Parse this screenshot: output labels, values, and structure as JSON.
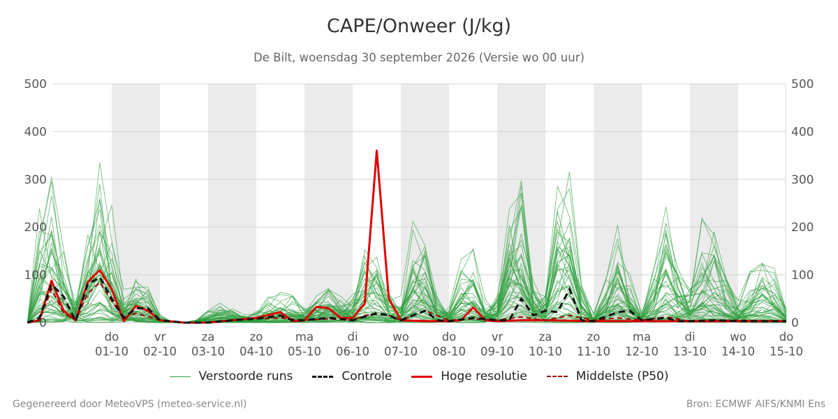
{
  "header": {
    "title": "CAPE/Onweer (J/kg)",
    "subtitle": "De Bilt, woensdag 30 september 2026 (Versie wo 00 uur)"
  },
  "footer": {
    "left": "Gegenereerd door MeteoVPS (meteo-service.nl)",
    "right": "Bron: ECMWF AIFS/KNMI Ens"
  },
  "legend": {
    "perturbed": "Verstoorde runs",
    "control": "Controle",
    "highres": "Hoge resolutie",
    "median": "Middelste (P50)"
  },
  "chart_data": {
    "type": "line",
    "title": "CAPE/Onweer (J/kg)",
    "subtitle": "De Bilt, woensdag 30 september 2026 (Versie wo 00 uur)",
    "ylim": [
      0,
      500
    ],
    "yticks": [
      0,
      100,
      200,
      300,
      400,
      500
    ],
    "x_unit": "days since 30-09 00:00",
    "xlim": [
      0,
      15
    ],
    "day_labels": [
      {
        "day": "do",
        "date": "01-10"
      },
      {
        "day": "vr",
        "date": "02-10"
      },
      {
        "day": "za",
        "date": "03-10"
      },
      {
        "day": "zo",
        "date": "04-10"
      },
      {
        "day": "ma",
        "date": "05-10"
      },
      {
        "day": "di",
        "date": "06-10"
      },
      {
        "day": "wo",
        "date": "07-10"
      },
      {
        "day": "do",
        "date": "08-10"
      },
      {
        "day": "vr",
        "date": "09-10"
      },
      {
        "day": "za",
        "date": "10-10"
      },
      {
        "day": "zo",
        "date": "11-10"
      },
      {
        "day": "ma",
        "date": "12-10"
      },
      {
        "day": "di",
        "date": "13-10"
      },
      {
        "day": "wo",
        "date": "14-10"
      },
      {
        "day": "do",
        "date": "15-10"
      }
    ],
    "shaded_days": [
      1,
      3,
      5,
      7,
      9,
      11,
      13
    ],
    "grid": true,
    "legend_position": "bottom",
    "colors": {
      "perturbed": "#2e9e3e",
      "control": "#111111",
      "highres": "#e00000",
      "median": "#a00000",
      "shade": "#ebebeb",
      "grid": "#d4d4d4"
    },
    "series_highres": [
      [
        -0.75,
        0
      ],
      [
        -0.5,
        5
      ],
      [
        -0.25,
        88
      ],
      [
        0,
        25
      ],
      [
        0.25,
        5
      ],
      [
        0.5,
        85
      ],
      [
        0.75,
        110
      ],
      [
        1,
        70
      ],
      [
        1.25,
        3
      ],
      [
        1.5,
        35
      ],
      [
        1.75,
        25
      ],
      [
        2,
        5
      ],
      [
        2.5,
        0
      ],
      [
        3,
        0
      ],
      [
        3.5,
        5
      ],
      [
        4,
        10
      ],
      [
        4.5,
        22
      ],
      [
        4.75,
        3
      ],
      [
        5,
        5
      ],
      [
        5.25,
        33
      ],
      [
        5.5,
        30
      ],
      [
        5.75,
        10
      ],
      [
        6,
        10
      ],
      [
        6.25,
        40
      ],
      [
        6.5,
        360
      ],
      [
        6.75,
        50
      ],
      [
        7,
        5
      ],
      [
        7.5,
        3
      ],
      [
        8,
        3
      ],
      [
        8.25,
        5
      ],
      [
        8.5,
        32
      ],
      [
        8.75,
        5
      ],
      [
        9,
        3
      ],
      [
        9.5,
        5
      ],
      [
        10,
        5
      ],
      [
        11,
        3
      ],
      [
        12,
        3
      ],
      [
        13,
        3
      ],
      [
        14,
        3
      ],
      [
        15,
        3
      ]
    ],
    "series_control": [
      [
        -0.75,
        0
      ],
      [
        -0.5,
        10
      ],
      [
        -0.25,
        80
      ],
      [
        0,
        55
      ],
      [
        0.25,
        3
      ],
      [
        0.5,
        80
      ],
      [
        0.75,
        95
      ],
      [
        1,
        50
      ],
      [
        1.25,
        10
      ],
      [
        1.5,
        30
      ],
      [
        1.75,
        30
      ],
      [
        2,
        5
      ],
      [
        2.5,
        0
      ],
      [
        3,
        0
      ],
      [
        3.5,
        5
      ],
      [
        4,
        8
      ],
      [
        4.5,
        15
      ],
      [
        4.75,
        5
      ],
      [
        5,
        5
      ],
      [
        5.5,
        10
      ],
      [
        6,
        5
      ],
      [
        6.5,
        20
      ],
      [
        6.75,
        15
      ],
      [
        7,
        5
      ],
      [
        7.5,
        25
      ],
      [
        7.75,
        5
      ],
      [
        8,
        3
      ],
      [
        8.5,
        10
      ],
      [
        9,
        5
      ],
      [
        9.25,
        5
      ],
      [
        9.5,
        50
      ],
      [
        9.75,
        15
      ],
      [
        10,
        25
      ],
      [
        10.25,
        22
      ],
      [
        10.5,
        70
      ],
      [
        10.75,
        5
      ],
      [
        11,
        3
      ],
      [
        11.5,
        22
      ],
      [
        11.75,
        25
      ],
      [
        12,
        5
      ],
      [
        12.5,
        10
      ],
      [
        12.75,
        3
      ],
      [
        13,
        3
      ],
      [
        13.5,
        5
      ],
      [
        14,
        3
      ],
      [
        15,
        3
      ]
    ],
    "series_median": [
      [
        -0.75,
        0
      ],
      [
        -0.5,
        5
      ],
      [
        -0.25,
        70
      ],
      [
        0,
        20
      ],
      [
        0.25,
        5
      ],
      [
        0.5,
        60
      ],
      [
        0.75,
        85
      ],
      [
        1,
        45
      ],
      [
        1.25,
        10
      ],
      [
        1.5,
        20
      ],
      [
        2,
        5
      ],
      [
        2.5,
        0
      ],
      [
        3,
        0
      ],
      [
        3.5,
        5
      ],
      [
        4,
        8
      ],
      [
        4.5,
        10
      ],
      [
        5,
        5
      ],
      [
        5.5,
        8
      ],
      [
        6,
        5
      ],
      [
        6.25,
        15
      ],
      [
        6.5,
        18
      ],
      [
        6.75,
        15
      ],
      [
        7,
        5
      ],
      [
        7.5,
        25
      ],
      [
        8,
        5
      ],
      [
        8.5,
        8
      ],
      [
        9,
        5
      ],
      [
        9.5,
        12
      ],
      [
        10,
        5
      ],
      [
        10.5,
        15
      ],
      [
        11,
        5
      ],
      [
        11.5,
        10
      ],
      [
        12,
        5
      ],
      [
        12.5,
        12
      ],
      [
        13,
        3
      ],
      [
        14,
        5
      ],
      [
        15,
        3
      ]
    ]
  }
}
